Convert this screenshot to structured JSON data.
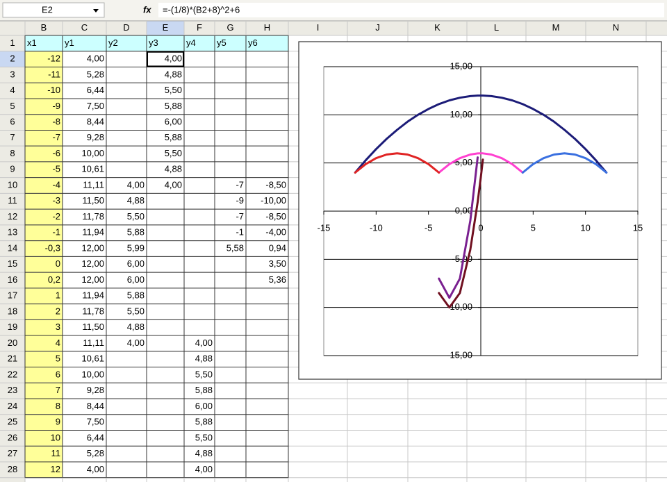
{
  "formula_bar": {
    "name_box": "E2",
    "fx_label": "fx",
    "formula": "=-(1/8)*(B2+8)^2+6"
  },
  "columns": [
    "B",
    "C",
    "D",
    "E",
    "F",
    "G",
    "H",
    "I",
    "J",
    "K",
    "L",
    "M",
    "N"
  ],
  "row_numbers": [
    "1",
    "2",
    "3",
    "4",
    "5",
    "6",
    "7",
    "8",
    "9",
    "10",
    "11",
    "12",
    "13",
    "14",
    "15",
    "16",
    "17",
    "18",
    "19",
    "20",
    "21",
    "22",
    "23",
    "24",
    "25",
    "26",
    "27",
    "28"
  ],
  "table": {
    "rows": [
      [
        "x1",
        "y1",
        "y2",
        "y3",
        "y4",
        "y5",
        "y6"
      ],
      [
        "-12",
        "4,00",
        null,
        "4,00",
        null,
        null,
        null
      ],
      [
        "-11",
        "5,28",
        null,
        "4,88",
        null,
        null,
        null
      ],
      [
        "-10",
        "6,44",
        null,
        "5,50",
        null,
        null,
        null
      ],
      [
        "-9",
        "7,50",
        null,
        "5,88",
        null,
        null,
        null
      ],
      [
        "-8",
        "8,44",
        null,
        "6,00",
        null,
        null,
        null
      ],
      [
        "-7",
        "9,28",
        null,
        "5,88",
        null,
        null,
        null
      ],
      [
        "-6",
        "10,00",
        null,
        "5,50",
        null,
        null,
        null
      ],
      [
        "-5",
        "10,61",
        null,
        "4,88",
        null,
        null,
        null
      ],
      [
        "-4",
        "11,11",
        "4,00",
        "4,00",
        null,
        "-7",
        "-8,50"
      ],
      [
        "-3",
        "11,50",
        "4,88",
        null,
        null,
        "-9",
        "-10,00"
      ],
      [
        "-2",
        "11,78",
        "5,50",
        null,
        null,
        "-7",
        "-8,50"
      ],
      [
        "-1",
        "11,94",
        "5,88",
        null,
        null,
        "-1",
        "-4,00"
      ],
      [
        "-0,3",
        "12,00",
        "5,99",
        null,
        null,
        "5,58",
        "0,94"
      ],
      [
        "0",
        "12,00",
        "6,00",
        null,
        null,
        null,
        "3,50"
      ],
      [
        "0,2",
        "12,00",
        "6,00",
        null,
        null,
        null,
        "5,36"
      ],
      [
        "1",
        "11,94",
        "5,88",
        null,
        null,
        null,
        null
      ],
      [
        "2",
        "11,78",
        "5,50",
        null,
        null,
        null,
        null
      ],
      [
        "3",
        "11,50",
        "4,88",
        null,
        null,
        null,
        null
      ],
      [
        "4",
        "11,11",
        "4,00",
        null,
        "4,00",
        null,
        null
      ],
      [
        "5",
        "10,61",
        null,
        null,
        "4,88",
        null,
        null
      ],
      [
        "6",
        "10,00",
        null,
        null,
        "5,50",
        null,
        null
      ],
      [
        "7",
        "9,28",
        null,
        null,
        "5,88",
        null,
        null
      ],
      [
        "8",
        "8,44",
        null,
        null,
        "6,00",
        null,
        null
      ],
      [
        "9",
        "7,50",
        null,
        null,
        "5,88",
        null,
        null
      ],
      [
        "10",
        "6,44",
        null,
        null,
        "5,50",
        null,
        null
      ],
      [
        "11",
        "5,28",
        null,
        null,
        "4,88",
        null,
        null
      ],
      [
        "12",
        "4,00",
        null,
        null,
        "4,00",
        null,
        null
      ]
    ]
  },
  "chart_data": {
    "type": "line",
    "xlim": [
      -15,
      15
    ],
    "ylim": [
      -15,
      15
    ],
    "xticks": [
      -15,
      -10,
      -5,
      0,
      5,
      10,
      15
    ],
    "yticks": [
      {
        "value": 15,
        "label": "15,00"
      },
      {
        "value": 10,
        "label": "10,00"
      },
      {
        "value": 5,
        "label": "5,00"
      },
      {
        "value": 0,
        "label": "0,00"
      },
      {
        "value": -5,
        "label": "-5,00"
      },
      {
        "value": -10,
        "label": "-10,00"
      },
      {
        "value": -15,
        "label": "-15,00"
      }
    ],
    "grid": true,
    "series": [
      {
        "color": "#1c1c78",
        "x": [
          -12,
          -11,
          -10,
          -9,
          -8,
          -7,
          -6,
          -5,
          -4,
          -3,
          -2,
          -1,
          -0.3,
          0,
          0.2,
          1,
          2,
          3,
          4,
          5,
          6,
          7,
          8,
          9,
          10,
          11,
          12
        ],
        "values": [
          4,
          5.28,
          6.44,
          7.5,
          8.44,
          9.28,
          10,
          10.61,
          11.11,
          11.5,
          11.78,
          11.94,
          12,
          12,
          12,
          11.94,
          11.78,
          11.5,
          11.11,
          10.61,
          10,
          9.28,
          8.44,
          7.5,
          6.44,
          5.28,
          4
        ]
      },
      {
        "color": "#ff40d0",
        "x": [
          -4,
          -3,
          -2,
          -1,
          -0.3,
          0,
          0.2,
          1,
          2,
          3,
          4
        ],
        "values": [
          4,
          4.88,
          5.5,
          5.88,
          5.99,
          6,
          6,
          5.88,
          5.5,
          4.88,
          4
        ]
      },
      {
        "color": "#e02424",
        "x": [
          -12,
          -11,
          -10,
          -9,
          -8,
          -7,
          -6,
          -5,
          -4
        ],
        "values": [
          4,
          4.88,
          5.5,
          5.88,
          6,
          5.88,
          5.5,
          4.88,
          4
        ]
      },
      {
        "color": "#3a70e0",
        "x": [
          4,
          5,
          6,
          7,
          8,
          9,
          10,
          11,
          12
        ],
        "values": [
          4,
          4.88,
          5.5,
          5.88,
          6,
          5.88,
          5.5,
          4.88,
          4
        ]
      },
      {
        "color": "#7a2090",
        "x": [
          -4,
          -3,
          -2,
          -1,
          -0.3
        ],
        "values": [
          -7,
          -9,
          -7,
          -1,
          5.58
        ]
      },
      {
        "color": "#701020",
        "x": [
          -4,
          -3,
          -2,
          -1,
          -0.3,
          0,
          0.2
        ],
        "values": [
          -8.5,
          -10,
          -8.5,
          -4,
          0.94,
          3.5,
          5.36
        ]
      }
    ]
  }
}
